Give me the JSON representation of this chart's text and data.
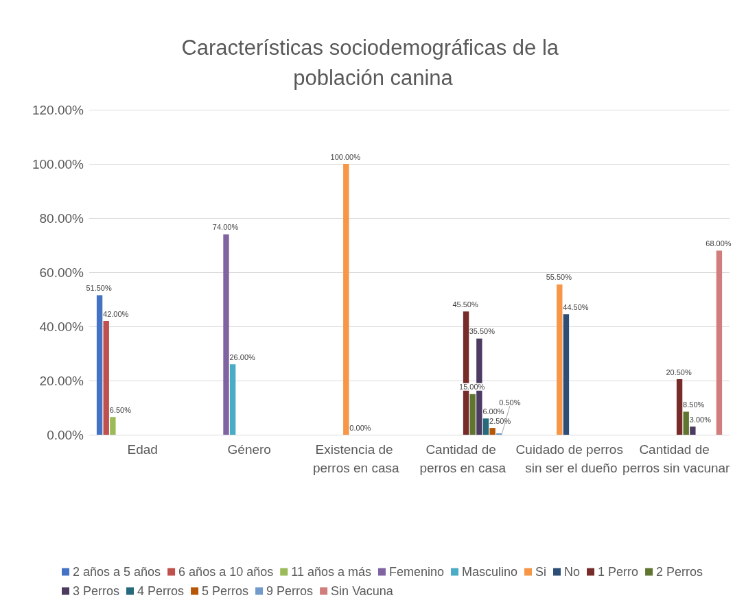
{
  "chart_data": {
    "type": "bar",
    "title": "Características sociodemográficas de la población canina",
    "categories": [
      "Edad",
      "Género",
      "Existencia de perros en casa",
      "Cantidad de perros en casa",
      "Cuidado de perros sin ser el dueño",
      "Cantidad de perros sin vacunar"
    ],
    "series": [
      {
        "name": "2 años a 5 años",
        "color": "#4472c4",
        "values": [
          51.5,
          null,
          null,
          null,
          null,
          null
        ],
        "value_labels": [
          "51.50%",
          null,
          null,
          null,
          null,
          null
        ]
      },
      {
        "name": "6 años a 10 años",
        "color": "#c0504d",
        "values": [
          42,
          null,
          null,
          null,
          null,
          null
        ],
        "value_labels": [
          "42.00%",
          null,
          null,
          null,
          null,
          null
        ]
      },
      {
        "name": "11 años a más",
        "color": "#9bbb59",
        "values": [
          6.5,
          null,
          null,
          null,
          null,
          null
        ],
        "value_labels": [
          "6.50%",
          null,
          null,
          null,
          null,
          null
        ]
      },
      {
        "name": "Femenino",
        "color": "#8064a2",
        "values": [
          null,
          74,
          null,
          null,
          null,
          null
        ],
        "value_labels": [
          null,
          "74.00%",
          null,
          null,
          null,
          null
        ]
      },
      {
        "name": "Masculino",
        "color": "#4bacc6",
        "values": [
          null,
          26,
          null,
          null,
          null,
          null
        ],
        "value_labels": [
          null,
          "26.00%",
          null,
          null,
          null,
          null
        ]
      },
      {
        "name": "Si",
        "color": "#f79646",
        "values": [
          null,
          null,
          100,
          null,
          55.5,
          null
        ],
        "value_labels": [
          null,
          null,
          "100.00%",
          null,
          "55.50%",
          null
        ]
      },
      {
        "name": "No",
        "color": "#2c4d75",
        "values": [
          null,
          null,
          0,
          null,
          44.5,
          null
        ],
        "value_labels": [
          null,
          null,
          "0.00%",
          null,
          "44.50%",
          null
        ]
      },
      {
        "name": "1 Perro",
        "color": "#772c2a",
        "values": [
          null,
          null,
          null,
          45.5,
          null,
          20.5
        ],
        "value_labels": [
          null,
          null,
          null,
          "45.50%",
          null,
          "20.50%"
        ]
      },
      {
        "name": "2 Perros",
        "color": "#5f7530",
        "values": [
          null,
          null,
          null,
          15,
          null,
          8.5
        ],
        "value_labels": [
          null,
          null,
          null,
          "15.00%",
          null,
          "8.50%"
        ]
      },
      {
        "name": "3 Perros",
        "color": "#4d3b62",
        "values": [
          null,
          null,
          null,
          35.5,
          null,
          3
        ],
        "value_labels": [
          null,
          null,
          null,
          "35.50%",
          null,
          "3.00%"
        ]
      },
      {
        "name": "4 Perros",
        "color": "#276a7c",
        "values": [
          null,
          null,
          null,
          6,
          null,
          null
        ],
        "value_labels": [
          null,
          null,
          null,
          "6.00%",
          null,
          null
        ]
      },
      {
        "name": "5 Perros",
        "color": "#b65708",
        "values": [
          null,
          null,
          null,
          2.5,
          null,
          null
        ],
        "value_labels": [
          null,
          null,
          null,
          "2.50%",
          null,
          null
        ]
      },
      {
        "name": "9 Perros",
        "color": "#729aca",
        "values": [
          null,
          null,
          null,
          0.5,
          null,
          null
        ],
        "value_labels": [
          null,
          null,
          null,
          "0.50%",
          null,
          null
        ]
      },
      {
        "name": "Sin Vacuna",
        "color": "#d07d7c",
        "values": [
          null,
          null,
          null,
          null,
          null,
          68
        ],
        "value_labels": [
          null,
          null,
          null,
          null,
          null,
          "68.00%"
        ]
      }
    ],
    "ylim": [
      0,
      120
    ],
    "yticks": [
      {
        "value": 0,
        "label": "0.00%"
      },
      {
        "value": 20,
        "label": "20.00%"
      },
      {
        "value": 40,
        "label": "40.00%"
      },
      {
        "value": 60,
        "label": "60.00%"
      },
      {
        "value": 80,
        "label": "80.00%"
      },
      {
        "value": 100,
        "label": "100.00%"
      },
      {
        "value": 120,
        "label": "120.00%"
      }
    ],
    "grid": "y",
    "legend": "bottom"
  }
}
